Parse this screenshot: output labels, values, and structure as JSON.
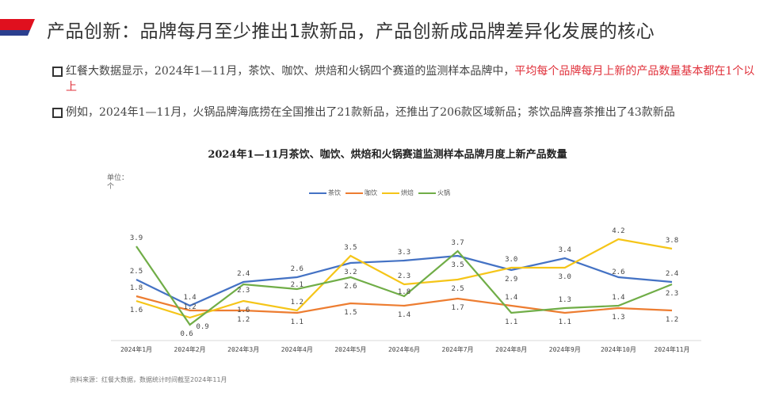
{
  "header": {
    "title": "产品创新：品牌每月至少推出1款新品，产品创新成品牌差异化发展的核心",
    "logo_colors": [
      "#e0101e",
      "#2b3f8f"
    ]
  },
  "bullets": [
    {
      "text": "红餐大数据显示，2024年1—11月，茶饮、咖饮、烘焙和火锅四个赛道的监测样本品牌中，",
      "highlight": "平均每个品牌每月上新的产品数量基本都在1个以上"
    },
    {
      "text": "例如，2024年1—11月，火锅品牌海底捞在全国推出了21款新品，还推出了206款区域新品；茶饮品牌喜茶推出了43款新品",
      "highlight": ""
    }
  ],
  "source": "资料来源：红餐大数据，数据统计时间截至2024年11月",
  "chart_data": {
    "type": "line",
    "title": "2024年1—11月茶饮、咖饮、烘焙和火锅赛道监测样本品牌月度上新产品数量",
    "unit_label": "单位：个",
    "ylim": [
      0,
      5
    ],
    "grid": false,
    "legend_position": "top",
    "categories": [
      "2024年1月",
      "2024年2月",
      "2024年3月",
      "2024年4月",
      "2024年5月",
      "2024年6月",
      "2024年7月",
      "2024年8月",
      "2024年9月",
      "2024年10月",
      "2024年11月"
    ],
    "series": [
      {
        "name": "茶饮",
        "color": "#4472c4",
        "values": [
          2.5,
          1.4,
          2.4,
          2.6,
          3.2,
          3.3,
          3.5,
          2.9,
          3.4,
          2.6,
          2.4
        ]
      },
      {
        "name": "咖饮",
        "color": "#ed7d31",
        "values": [
          1.8,
          1.2,
          1.2,
          1.1,
          1.5,
          1.4,
          1.7,
          1.4,
          1.1,
          1.3,
          1.2
        ]
      },
      {
        "name": "烘焙",
        "color": "#f5c518",
        "values": [
          1.6,
          0.9,
          1.6,
          1.2,
          3.5,
          2.3,
          2.5,
          3.0,
          3.0,
          4.2,
          3.8
        ]
      },
      {
        "name": "火锅",
        "color": "#70ad47",
        "values": [
          3.9,
          0.6,
          2.3,
          2.1,
          2.6,
          1.8,
          3.7,
          1.1,
          1.3,
          1.4,
          2.3
        ]
      }
    ]
  }
}
